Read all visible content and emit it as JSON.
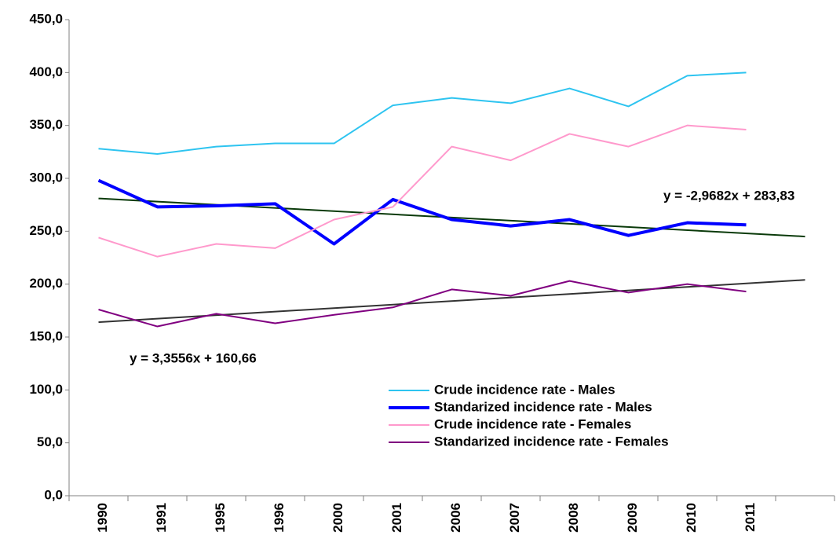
{
  "chart_data": {
    "type": "line",
    "categories": [
      "1990",
      "1991",
      "1995",
      "1996",
      "2000",
      "2001",
      "2006",
      "2007",
      "2008",
      "2009",
      "2010",
      "2011",
      null
    ],
    "series": [
      {
        "name": "Crude incidence rate - Males",
        "color": "#2ec4f0",
        "width": 2,
        "values": [
          328,
          323,
          330,
          333,
          333,
          369,
          376,
          371,
          385,
          368,
          397,
          400,
          null
        ]
      },
      {
        "name": "Standarized incidence rate - Males",
        "color": "#0000ff",
        "width": 4,
        "values": [
          298,
          273,
          274,
          276,
          238,
          280,
          261,
          255,
          261,
          246,
          258,
          256,
          null
        ]
      },
      {
        "name": "Crude incidence rate - Females",
        "color": "#ff99cc",
        "width": 2,
        "values": [
          244,
          226,
          238,
          234,
          261,
          273,
          330,
          317,
          342,
          330,
          350,
          346,
          null
        ]
      },
      {
        "name": "Standarized incidence rate - Females",
        "color": "#800080",
        "width": 2,
        "values": [
          176,
          160,
          172,
          163,
          171,
          178,
          195,
          189,
          203,
          192,
          200,
          193,
          null
        ]
      }
    ],
    "trendlines": [
      {
        "equation": "y = -2,9682x + 283,83",
        "color": "#0a3a0a",
        "start": 281,
        "end": 245
      },
      {
        "equation": "y = 3,3556x + 160,66",
        "color": "#333333",
        "start": 164,
        "end": 204
      }
    ],
    "ylim": [
      0,
      450
    ],
    "yticks": [
      {
        "value": 0,
        "label": "0,0"
      },
      {
        "value": 50,
        "label": "50,0"
      },
      {
        "value": 100,
        "label": "100,0"
      },
      {
        "value": 150,
        "label": "150,0"
      },
      {
        "value": 200,
        "label": "200,0"
      },
      {
        "value": 250,
        "label": "250,0"
      },
      {
        "value": 300,
        "label": "300,0"
      },
      {
        "value": 350,
        "label": "350,0"
      },
      {
        "value": 400,
        "label": "400,0"
      },
      {
        "value": 450,
        "label": "450,0"
      }
    ],
    "grid": false,
    "legend": "lower-right"
  }
}
